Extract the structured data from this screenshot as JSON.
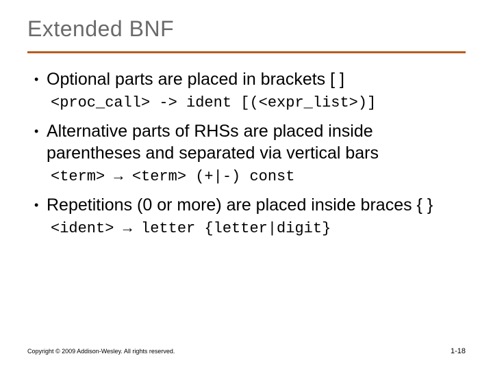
{
  "title": "Extended BNF",
  "title_color": "#6a6a6a",
  "title_fontsize": 32,
  "rule_color": "#b85c1c",
  "rule_height": 3,
  "background_color": "#ffffff",
  "body_font": "Lucida Sans",
  "code_font": "Courier New",
  "bullet_fontsize": 25,
  "code_fontsize": 22,
  "bullets": [
    {
      "text": "Optional parts are placed in brackets [ ]",
      "code": "<proc_call> -> ident [(<expr_list>)]"
    },
    {
      "text": "Alternative parts of RHSs are placed inside parentheses and separated via vertical bars",
      "code": "<term> → <term> (+|-) const"
    },
    {
      "text": "Repetitions (0 or more) are placed inside braces { }",
      "code": "<ident> → letter {letter|digit}"
    }
  ],
  "footer": {
    "copyright": "Copyright © 2009 Addison-Wesley. All rights reserved.",
    "page": "1-18"
  }
}
